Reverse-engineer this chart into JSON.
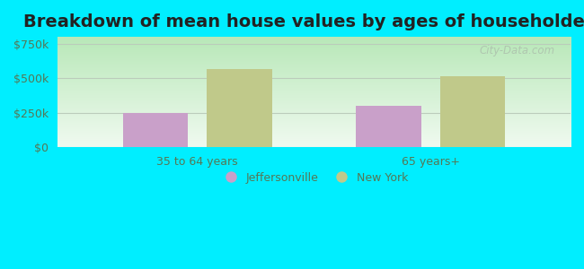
{
  "title": "Breakdown of mean house values by ages of householders",
  "categories": [
    "35 to 64 years",
    "65 years+"
  ],
  "series": {
    "Jeffersonville": [
      250000,
      300000
    ],
    "New York": [
      570000,
      515000
    ]
  },
  "bar_colors": {
    "Jeffersonville": "#c9a0c9",
    "New York": "#c0c98a"
  },
  "ylim": [
    0,
    800000
  ],
  "yticks": [
    0,
    250000,
    500000,
    750000
  ],
  "ytick_labels": [
    "$0",
    "$250k",
    "$500k",
    "$750k"
  ],
  "background_color": "#00eeff",
  "plot_bg_gradient_top": "#b8e8b8",
  "plot_bg_gradient_bottom": "#f0faf0",
  "grid_color": "#bbccbb",
  "title_fontsize": 14,
  "tick_fontsize": 9,
  "legend_fontsize": 9,
  "bar_width": 0.28,
  "watermark": "City-Data.com",
  "tick_color": "#557755"
}
